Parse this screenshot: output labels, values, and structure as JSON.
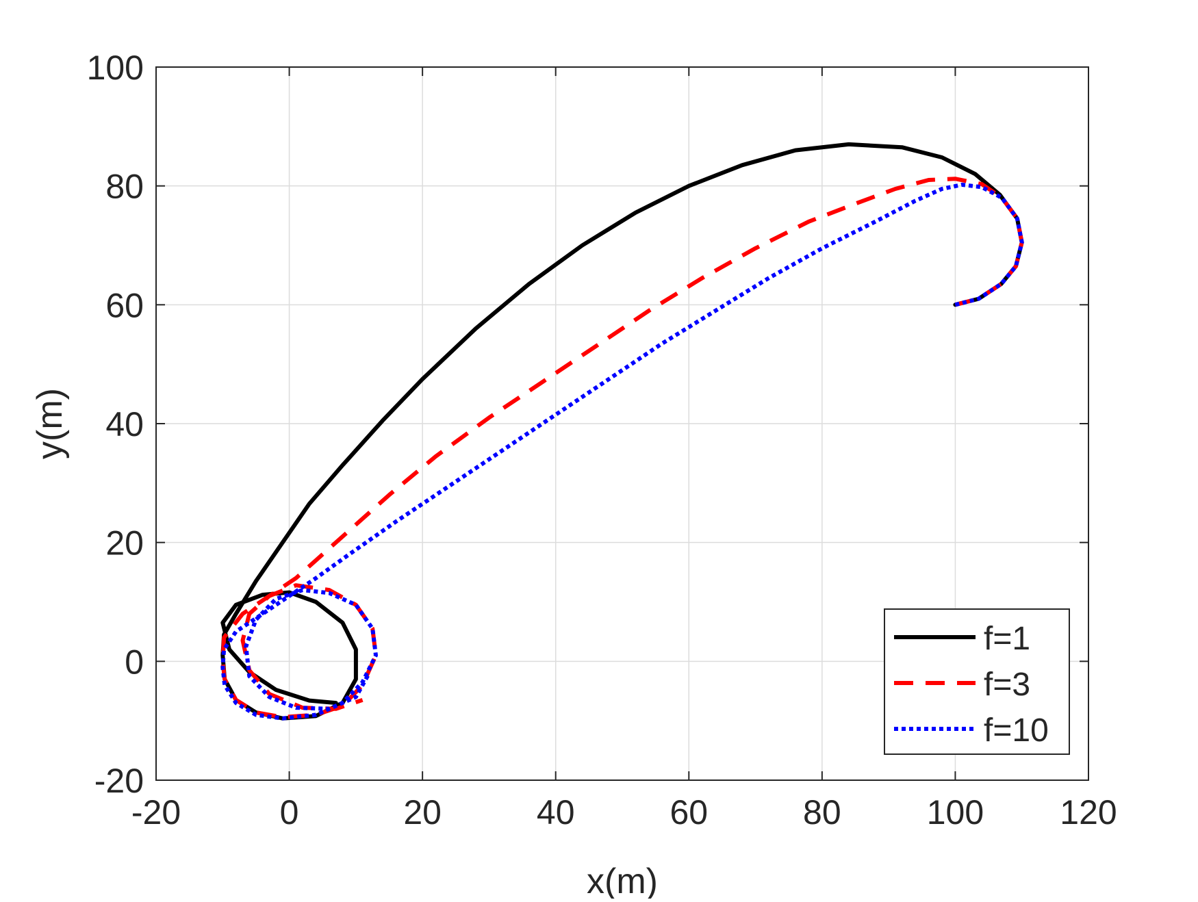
{
  "chart_data": {
    "type": "line",
    "title": "",
    "xlabel": "x(m)",
    "ylabel": "y(m)",
    "xlim": [
      -20,
      120
    ],
    "ylim": [
      -20,
      100
    ],
    "xticks": [
      -20,
      0,
      20,
      40,
      60,
      80,
      100,
      120
    ],
    "yticks": [
      -20,
      0,
      20,
      40,
      60,
      80,
      100
    ],
    "xtick_labels": [
      "-20",
      "0",
      "20",
      "40",
      "60",
      "80",
      "100",
      "120"
    ],
    "ytick_labels": [
      "-20",
      "0",
      "20",
      "40",
      "60",
      "80",
      "100"
    ],
    "grid": true,
    "legend_position": "bottom-right",
    "series": [
      {
        "name": "f=1",
        "color": "#000000",
        "style": "solid",
        "x": [
          100,
          103.5,
          106.9,
          109.1,
          110,
          109.3,
          106.7,
          103,
          98,
          92,
          84,
          76,
          68,
          60,
          52,
          44,
          36,
          28,
          20,
          14,
          8,
          3,
          -1,
          -5,
          -8,
          -9.8,
          -10,
          -9.7,
          -8,
          -5,
          -1,
          4,
          8,
          10,
          10,
          8,
          4,
          0,
          -4,
          -8,
          -10,
          -9,
          -6,
          -2,
          3,
          7
        ],
        "y": [
          60,
          61,
          63.5,
          66.5,
          70.5,
          74.5,
          78.5,
          82,
          84.8,
          86.5,
          87,
          86,
          83.5,
          80,
          75.5,
          70,
          63.5,
          56,
          47.5,
          40.5,
          33,
          26.5,
          20,
          13.5,
          8,
          4.5,
          1,
          -3,
          -6.5,
          -8.6,
          -9.6,
          -9.2,
          -7,
          -3,
          2,
          6.5,
          10,
          11.6,
          11.2,
          9.5,
          6.5,
          2,
          -1.8,
          -4.8,
          -6.6,
          -7
        ]
      },
      {
        "name": "f=3",
        "color": "#ff0000",
        "style": "dashed",
        "x": [
          100,
          103.5,
          106.9,
          109.1,
          110,
          109.3,
          107,
          104,
          100,
          96,
          91,
          85,
          78,
          70,
          62,
          54,
          46,
          38,
          30,
          22,
          15,
          9,
          4,
          1,
          -3,
          -7,
          -9.8,
          -10,
          -9.7,
          -8,
          -5,
          -1,
          4,
          8,
          11,
          13,
          12.5,
          10,
          6,
          1,
          -3,
          -6,
          -7,
          -6,
          -3,
          2,
          7,
          11
        ],
        "y": [
          60,
          61,
          63.5,
          66.5,
          70.5,
          74.5,
          78,
          80.3,
          81.2,
          81,
          79.5,
          77,
          74,
          69.5,
          64.5,
          59,
          53,
          47,
          41,
          34.5,
          28,
          22,
          17,
          14,
          11,
          8,
          4,
          0,
          -3,
          -6.5,
          -8.6,
          -9.4,
          -9,
          -7.5,
          -4,
          1,
          5.5,
          9.5,
          12,
          12.8,
          11,
          8,
          3.5,
          -1.5,
          -5.5,
          -7.8,
          -8,
          -6.5
        ]
      },
      {
        "name": "f=10",
        "color": "#0000ff",
        "style": "dotted",
        "x": [
          100,
          103.5,
          106.9,
          109.1,
          110,
          109.3,
          107,
          104,
          101,
          98,
          94,
          88,
          80,
          72,
          64,
          56,
          48,
          40,
          32,
          24,
          16,
          9,
          4,
          0,
          -4,
          -8,
          -9.8,
          -10,
          -9.7,
          -8,
          -5,
          -1,
          4,
          8,
          11,
          13,
          12.5,
          10,
          6,
          2,
          -2,
          -5,
          -6.5,
          -6,
          -3,
          1,
          6,
          10,
          12
        ],
        "y": [
          60,
          61,
          63.5,
          66.5,
          70.5,
          74.5,
          78,
          79.8,
          80.2,
          79.5,
          77.5,
          74,
          69.5,
          64.5,
          59,
          53.5,
          47.5,
          41.5,
          35.5,
          29.5,
          23.5,
          18,
          14,
          11,
          8,
          5,
          2,
          -1,
          -4,
          -7,
          -9,
          -9.6,
          -9,
          -7,
          -3.5,
          1,
          5.5,
          9.5,
          11.5,
          12,
          10.5,
          7,
          2.5,
          -2.5,
          -6,
          -7.8,
          -8,
          -6,
          -2
        ]
      }
    ]
  }
}
